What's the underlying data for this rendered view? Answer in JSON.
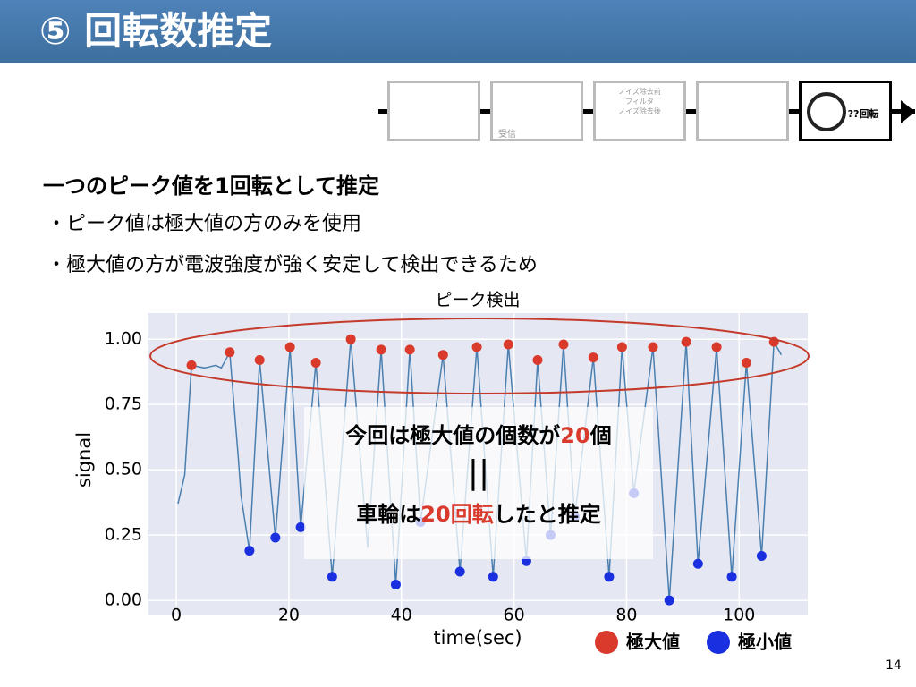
{
  "header": {
    "title": "⑤ 回転数推定"
  },
  "pipeline": {
    "steps": [
      "受信",
      "ノイズ除去前",
      "フィルタ",
      "ノイズ除去後",
      "??回転"
    ]
  },
  "body": {
    "heading": "一つのピーク値を1回転として推定",
    "bullets": [
      "・ピーク値は極大値の方のみを使用",
      "・極大値の方が電波強度が強く安定して検出できるため"
    ]
  },
  "chart_data": {
    "type": "line",
    "title": "ピーク検出",
    "x_label": "time(sec)",
    "y_label": "signal",
    "xlim": [
      -5.1,
      112.2
    ],
    "ylim": [
      -0.058,
      1.1
    ],
    "xticks": [
      0,
      20,
      40,
      60,
      80,
      100
    ],
    "yticks": [
      {
        "value": 0,
        "label": "0.00"
      },
      0.25,
      {
        "value": 0.5,
        "label": "0.50"
      },
      0.75,
      {
        "value": 1,
        "label": "1.00"
      }
    ],
    "grid": true,
    "background": "#e5e8f2",
    "series": [
      {
        "mode": "lines",
        "color": "#4a7fb0",
        "x": [
          0.3,
          1.5,
          2.7,
          5,
          7,
          8,
          9.5,
          11,
          11.5,
          13,
          14.8,
          17.6,
          20.2,
          22.1,
          24.8,
          27.7,
          31,
          34,
          36.4,
          39,
          41.5,
          43.4,
          47.4,
          50.4,
          53.4,
          56.3,
          59,
          62.2,
          64.2,
          66.5,
          68.8,
          70.8,
          74.1,
          76.9,
          79.2,
          81.3,
          84.7,
          87.6,
          90.6,
          92.7,
          96,
          98.7,
          101.3,
          104,
          106.2,
          107.5
        ],
        "values": [
          0.37,
          0.48,
          0.9,
          0.89,
          0.9,
          0.89,
          0.95,
          0.55,
          0.4,
          0.19,
          0.92,
          0.24,
          0.97,
          0.28,
          0.91,
          0.09,
          1.0,
          0.2,
          0.96,
          0.06,
          0.96,
          0.3,
          0.94,
          0.11,
          0.97,
          0.09,
          0.98,
          0.15,
          0.92,
          0.25,
          0.98,
          0.32,
          0.93,
          0.09,
          0.97,
          0.41,
          0.97,
          0.0,
          0.99,
          0.14,
          0.97,
          0.09,
          0.91,
          0.17,
          0.99,
          0.94
        ]
      },
      {
        "name": "極大値",
        "mode": "markers",
        "color": "#d93a2b",
        "x": [
          2.7,
          9.5,
          14.8,
          20.2,
          24.8,
          31,
          36.4,
          41.5,
          47.4,
          53.4,
          59,
          64.2,
          68.8,
          74.1,
          79.2,
          84.7,
          90.6,
          96,
          101.3,
          106.2
        ],
        "values": [
          0.9,
          0.95,
          0.92,
          0.97,
          0.91,
          1.0,
          0.96,
          0.96,
          0.94,
          0.97,
          0.98,
          0.92,
          0.98,
          0.93,
          0.97,
          0.97,
          0.99,
          0.97,
          0.91,
          0.99
        ]
      },
      {
        "name": "極小値",
        "mode": "markers",
        "color": "#1a2fe0",
        "x": [
          13,
          17.6,
          22.1,
          27.7,
          39,
          43.4,
          50.4,
          56.3,
          62.2,
          66.5,
          70.8,
          76.9,
          81.3,
          87.6,
          92.7,
          98.7,
          104
        ],
        "values": [
          0.19,
          0.24,
          0.28,
          0.09,
          0.06,
          0.3,
          0.11,
          0.09,
          0.15,
          0.25,
          0.32,
          0.09,
          0.41,
          0.0,
          0.14,
          0.09,
          0.17
        ]
      }
    ]
  },
  "overlay": {
    "line1": [
      "今回は極大値の個数が",
      "20",
      "個"
    ],
    "equals": "||",
    "line2": [
      "車輪は",
      "20回転",
      "したと推定"
    ]
  },
  "page_number": "14"
}
